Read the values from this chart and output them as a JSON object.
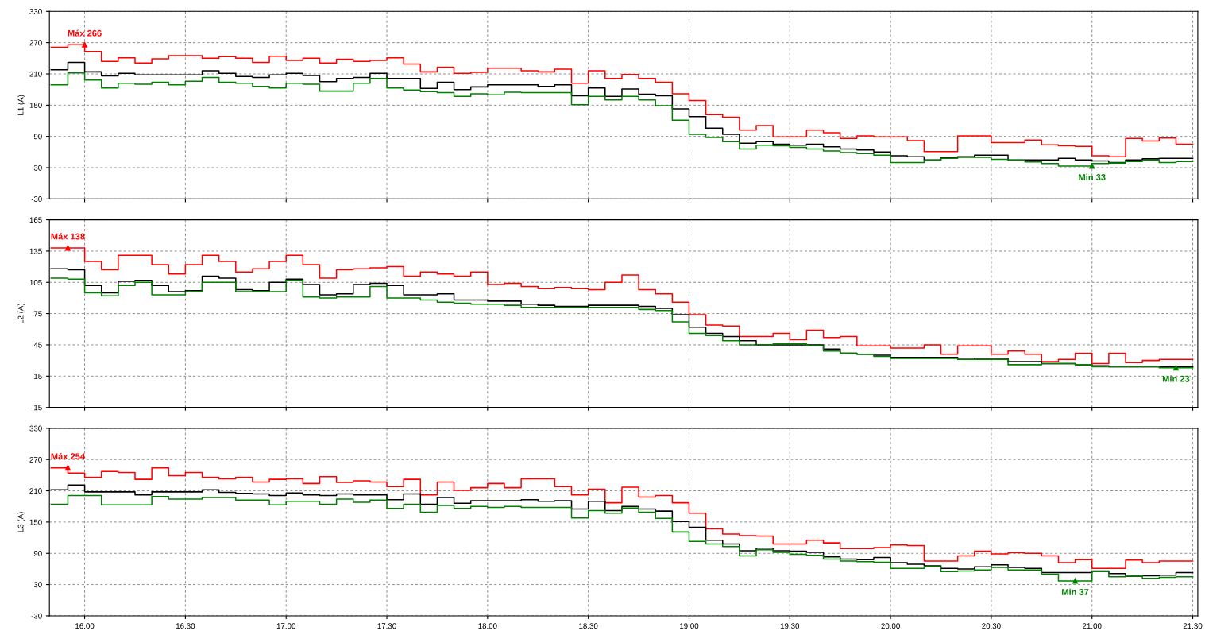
{
  "chart_data": [
    {
      "type": "step",
      "ylabel": "L1 (A)",
      "xlim": [
        15.825,
        21.525
      ],
      "ylim": [
        -30,
        330
      ],
      "yticks": [
        -30,
        30,
        90,
        150,
        210,
        270,
        330
      ],
      "xticks": [
        16,
        16.5,
        17,
        17.5,
        18,
        18.5,
        19,
        19.5,
        20,
        20.5,
        21,
        21.5
      ],
      "tick_labels": "y",
      "grid": true,
      "line_style": "solid",
      "x": [
        15.8333,
        15.9167,
        16,
        16.0833,
        16.1667,
        16.25,
        16.3333,
        16.4167,
        16.5,
        16.5833,
        16.6667,
        16.75,
        16.8333,
        16.9167,
        17,
        17.0833,
        17.1667,
        17.25,
        17.3333,
        17.4167,
        17.5,
        17.5833,
        17.6667,
        17.75,
        17.8333,
        17.9167,
        18,
        18.0833,
        18.1667,
        18.25,
        18.3333,
        18.4167,
        18.5,
        18.5833,
        18.6667,
        18.75,
        18.8333,
        18.9167,
        19,
        19.0833,
        19.1667,
        19.25,
        19.3333,
        19.4167,
        19.5,
        19.5833,
        19.6667,
        19.75,
        19.8333,
        19.9167,
        20,
        20.0833,
        20.1667,
        20.25,
        20.3333,
        20.4167,
        20.5,
        20.5833,
        20.6667,
        20.75,
        20.8333,
        20.9167,
        21,
        21.0833,
        21.1667,
        21.25,
        21.3333,
        21.4167,
        21.5
      ],
      "series": [
        {
          "color": "#ff0000",
          "values": [
            261,
            266,
            253,
            234,
            241,
            231,
            239,
            245,
            245,
            240,
            243,
            240,
            232,
            244,
            236,
            240,
            231,
            238,
            234,
            236,
            241,
            229,
            214,
            223,
            211,
            213,
            221,
            221,
            216,
            214,
            219,
            192,
            216,
            201,
            209,
            201,
            194,
            172,
            159,
            132,
            127,
            102,
            111,
            89,
            89,
            102,
            97,
            86,
            91,
            89,
            89,
            82,
            61,
            61,
            91,
            91,
            78,
            78,
            83,
            74,
            72,
            71,
            53,
            51,
            86,
            81,
            87,
            75,
            75
          ]
        },
        {
          "color": "#000000",
          "values": [
            218,
            232,
            214,
            206,
            211,
            208,
            208,
            208,
            208,
            216,
            211,
            205,
            203,
            208,
            211,
            207,
            195,
            201,
            203,
            211,
            201,
            201,
            182,
            194,
            180,
            185,
            189,
            189,
            189,
            186,
            189,
            168,
            183,
            167,
            181,
            171,
            168,
            143,
            128,
            106,
            94,
            77,
            80,
            75,
            73,
            75,
            70,
            66,
            64,
            60,
            53,
            51,
            45,
            49,
            51,
            54,
            54,
            45,
            45,
            45,
            48,
            45,
            43,
            40,
            45,
            47,
            48,
            48,
            48
          ]
        },
        {
          "color": "#008000",
          "values": [
            189,
            212,
            198,
            183,
            192,
            190,
            194,
            189,
            196,
            203,
            194,
            192,
            186,
            183,
            192,
            190,
            177,
            177,
            192,
            201,
            183,
            179,
            176,
            174,
            167,
            172,
            170,
            175,
            174,
            174,
            174,
            151,
            167,
            160,
            167,
            160,
            149,
            121,
            94,
            88,
            80,
            66,
            73,
            72,
            69,
            66,
            62,
            59,
            57,
            54,
            40,
            40,
            44,
            48,
            50,
            50,
            46,
            44,
            41,
            38,
            33,
            33,
            38,
            39,
            42,
            44,
            40,
            42,
            42
          ]
        }
      ],
      "annotations": [
        {
          "text": "Máx 266",
          "x": 16.0,
          "y": 266
        },
        {
          "text": "Min 33",
          "x": 21.0,
          "y": 33
        }
      ]
    },
    {
      "type": "step",
      "ylabel": "L2 (A)",
      "xlim": [
        15.825,
        21.525
      ],
      "ylim": [
        -15,
        165
      ],
      "yticks": [
        -15,
        15,
        45,
        75,
        105,
        135,
        165
      ],
      "xticks": [
        16,
        16.5,
        17,
        17.5,
        18,
        18.5,
        19,
        19.5,
        20,
        20.5,
        21,
        21.5
      ],
      "tick_labels": "y",
      "grid": true,
      "line_style": "solid",
      "x": [
        15.8333,
        15.9167,
        16,
        16.0833,
        16.1667,
        16.25,
        16.3333,
        16.4167,
        16.5,
        16.5833,
        16.6667,
        16.75,
        16.8333,
        16.9167,
        17,
        17.0833,
        17.1667,
        17.25,
        17.3333,
        17.4167,
        17.5,
        17.5833,
        17.6667,
        17.75,
        17.8333,
        17.9167,
        18,
        18.0833,
        18.1667,
        18.25,
        18.3333,
        18.4167,
        18.5,
        18.5833,
        18.6667,
        18.75,
        18.8333,
        18.9167,
        19,
        19.0833,
        19.1667,
        19.25,
        19.3333,
        19.4167,
        19.5,
        19.5833,
        19.6667,
        19.75,
        19.8333,
        19.9167,
        20,
        20.0833,
        20.1667,
        20.25,
        20.3333,
        20.4167,
        20.5,
        20.5833,
        20.6667,
        20.75,
        20.8333,
        20.9167,
        21,
        21.0833,
        21.1667,
        21.25,
        21.3333,
        21.4167,
        21.5
      ],
      "series": [
        {
          "color": "#ff0000",
          "values": [
            138,
            138,
            125,
            117,
            131,
            131,
            122,
            113,
            122,
            131,
            125,
            115,
            118,
            125,
            131,
            122,
            109,
            117,
            118,
            119,
            120,
            111,
            115,
            113,
            111,
            115,
            103,
            104,
            101,
            99,
            100,
            99,
            98,
            105,
            112,
            98,
            94,
            86,
            74,
            64,
            63,
            53,
            53,
            56,
            50,
            59,
            52,
            53,
            44,
            44,
            42,
            42,
            45,
            36,
            44,
            44,
            36,
            39,
            36,
            29,
            31,
            37,
            27,
            37,
            28,
            30,
            31,
            31,
            31
          ]
        },
        {
          "color": "#000000",
          "values": [
            118,
            117,
            102,
            95,
            106,
            107,
            102,
            96,
            97,
            111,
            109,
            98,
            97,
            105,
            108,
            103,
            93,
            94,
            103,
            104,
            102,
            93,
            93,
            94,
            88,
            88,
            87,
            87,
            84,
            83,
            82,
            82,
            83,
            83,
            83,
            82,
            80,
            74,
            62,
            56,
            53,
            49,
            45,
            45,
            45,
            45,
            41,
            37,
            36,
            35,
            33,
            33,
            33,
            33,
            31,
            32,
            32,
            29,
            29,
            27,
            27,
            26,
            25,
            24,
            24,
            24,
            24,
            24,
            24
          ]
        },
        {
          "color": "#008000",
          "values": [
            109,
            108,
            95,
            92,
            102,
            105,
            93,
            93,
            96,
            105,
            105,
            96,
            96,
            96,
            107,
            91,
            90,
            91,
            91,
            101,
            90,
            90,
            88,
            86,
            85,
            84,
            84,
            83,
            81,
            81,
            81,
            81,
            81,
            81,
            81,
            79,
            78,
            67,
            56,
            54,
            49,
            45,
            45,
            46,
            46,
            44,
            39,
            37,
            36,
            34,
            32,
            32,
            32,
            32,
            31,
            31,
            31,
            26,
            26,
            27,
            27,
            26,
            24,
            24,
            24,
            24,
            23,
            23,
            23
          ]
        }
      ],
      "annotations": [
        {
          "text": "Máx 138",
          "x": 15.9167,
          "y": 138
        },
        {
          "text": "Min 23",
          "x": 21.4167,
          "y": 23
        }
      ]
    },
    {
      "type": "step",
      "ylabel": "L3 (A)",
      "xlim": [
        15.825,
        21.525
      ],
      "ylim": [
        -30,
        330
      ],
      "yticks": [
        -30,
        30,
        90,
        150,
        210,
        270,
        330
      ],
      "xticks": [
        {
          "value": 16,
          "label": "16:00"
        },
        {
          "value": 16.5,
          "label": "16:30"
        },
        {
          "value": 17,
          "label": "17:00"
        },
        {
          "value": 17.5,
          "label": "17:30"
        },
        {
          "value": 18,
          "label": "18:00"
        },
        {
          "value": 18.5,
          "label": "18:30"
        },
        {
          "value": 19,
          "label": "19:00"
        },
        {
          "value": 19.5,
          "label": "19:30"
        },
        {
          "value": 20,
          "label": "20:00"
        },
        {
          "value": 20.5,
          "label": "20:30"
        },
        {
          "value": 21,
          "label": "21:00"
        },
        {
          "value": 21.5,
          "label": "21:30"
        }
      ],
      "grid": true,
      "line_style": "solid",
      "x": [
        15.8333,
        15.9167,
        16,
        16.0833,
        16.1667,
        16.25,
        16.3333,
        16.4167,
        16.5,
        16.5833,
        16.6667,
        16.75,
        16.8333,
        16.9167,
        17,
        17.0833,
        17.1667,
        17.25,
        17.3333,
        17.4167,
        17.5,
        17.5833,
        17.6667,
        17.75,
        17.8333,
        17.9167,
        18,
        18.0833,
        18.1667,
        18.25,
        18.3333,
        18.4167,
        18.5,
        18.5833,
        18.6667,
        18.75,
        18.8333,
        18.9167,
        19,
        19.0833,
        19.1667,
        19.25,
        19.3333,
        19.4167,
        19.5,
        19.5833,
        19.6667,
        19.75,
        19.8333,
        19.9167,
        20,
        20.0833,
        20.1667,
        20.25,
        20.3333,
        20.4167,
        20.5,
        20.5833,
        20.6667,
        20.75,
        20.8333,
        20.9167,
        21,
        21.0833,
        21.1667,
        21.25,
        21.3333,
        21.4167,
        21.5
      ],
      "series": [
        {
          "color": "#ff0000",
          "values": [
            254,
            244,
            236,
            247,
            245,
            232,
            254,
            239,
            245,
            236,
            233,
            236,
            227,
            232,
            233,
            224,
            237,
            226,
            229,
            227,
            218,
            232,
            202,
            227,
            211,
            216,
            224,
            216,
            233,
            233,
            218,
            202,
            213,
            187,
            217,
            198,
            201,
            187,
            167,
            137,
            127,
            124,
            123,
            108,
            108,
            115,
            110,
            99,
            99,
            101,
            106,
            105,
            75,
            75,
            85,
            94,
            89,
            91,
            90,
            85,
            72,
            78,
            61,
            61,
            77,
            72,
            75,
            75,
            75
          ]
        },
        {
          "color": "#000000",
          "values": [
            212,
            221,
            208,
            208,
            208,
            202,
            208,
            208,
            208,
            212,
            207,
            205,
            204,
            201,
            206,
            202,
            201,
            204,
            202,
            202,
            193,
            204,
            184,
            197,
            186,
            191,
            191,
            191,
            193,
            190,
            191,
            175,
            190,
            172,
            180,
            175,
            171,
            151,
            140,
            115,
            108,
            95,
            100,
            95,
            94,
            92,
            83,
            79,
            78,
            82,
            72,
            69,
            66,
            61,
            60,
            64,
            68,
            63,
            61,
            53,
            53,
            53,
            56,
            51,
            46,
            47,
            48,
            53,
            53
          ]
        },
        {
          "color": "#008000",
          "values": [
            184,
            201,
            201,
            183,
            183,
            183,
            199,
            194,
            194,
            197,
            197,
            192,
            192,
            183,
            190,
            190,
            184,
            194,
            188,
            192,
            176,
            184,
            169,
            182,
            176,
            180,
            178,
            180,
            178,
            178,
            178,
            158,
            172,
            167,
            177,
            169,
            157,
            131,
            113,
            108,
            103,
            85,
            97,
            92,
            88,
            86,
            79,
            75,
            74,
            73,
            61,
            61,
            64,
            55,
            56,
            58,
            63,
            58,
            58,
            50,
            37,
            37,
            55,
            45,
            47,
            42,
            44,
            45,
            45
          ]
        }
      ],
      "annotations": [
        {
          "text": "Máx 254",
          "x": 15.9167,
          "y": 254
        },
        {
          "text": "Min 37",
          "x": 20.9167,
          "y": 37
        }
      ]
    }
  ]
}
